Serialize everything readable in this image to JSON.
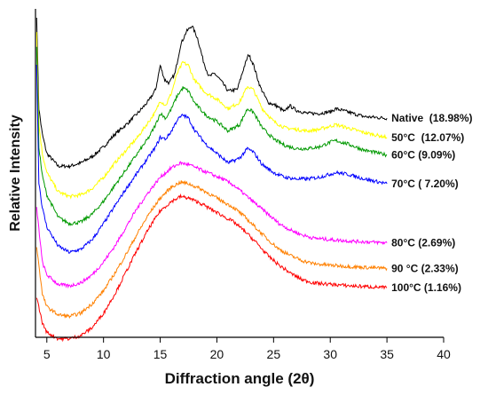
{
  "chart_data": {
    "type": "line",
    "title": "",
    "xlabel": "Diffraction angle (2θ)",
    "ylabel": "Relative Intensity",
    "xlim": [
      4,
      40
    ],
    "ylim": [
      0,
      100
    ],
    "xticks": [
      5,
      10,
      15,
      20,
      25,
      30,
      35,
      40
    ],
    "y_tick_labels_shown": false,
    "grid": false,
    "legend": "none (series labelled at right end of each curve)",
    "series": [
      {
        "name": "Native  (18.98%)",
        "color": "#000000",
        "points": [
          [
            4.1,
            100
          ],
          [
            4.3,
            71
          ],
          [
            4.6,
            63
          ],
          [
            5,
            57
          ],
          [
            6,
            53
          ],
          [
            7,
            53
          ],
          [
            8,
            54
          ],
          [
            9,
            56
          ],
          [
            10,
            59
          ],
          [
            11,
            63
          ],
          [
            12,
            66
          ],
          [
            13,
            69.5
          ],
          [
            14,
            73.5
          ],
          [
            14.6,
            77
          ],
          [
            15,
            84.5
          ],
          [
            15.4,
            80
          ],
          [
            15.8,
            79
          ],
          [
            16.3,
            82
          ],
          [
            16.8,
            91
          ],
          [
            17.3,
            95
          ],
          [
            17.8,
            97
          ],
          [
            18.3,
            93
          ],
          [
            18.8,
            86
          ],
          [
            19.3,
            81
          ],
          [
            19.8,
            82
          ],
          [
            20.3,
            80
          ],
          [
            21,
            76.5
          ],
          [
            21.8,
            77
          ],
          [
            22.4,
            84
          ],
          [
            22.8,
            88
          ],
          [
            23.2,
            85
          ],
          [
            23.8,
            78
          ],
          [
            24.5,
            73
          ],
          [
            25.2,
            72
          ],
          [
            26,
            70
          ],
          [
            26.4,
            72
          ],
          [
            27,
            70.5
          ],
          [
            28,
            69.5
          ],
          [
            29,
            69.5
          ],
          [
            30,
            70
          ],
          [
            30.5,
            71
          ],
          [
            31.5,
            70
          ],
          [
            33,
            68.5
          ],
          [
            35,
            68
          ]
        ]
      },
      {
        "name": "50°C  (12.07%)",
        "color": "#ffff00",
        "points": [
          [
            4.1,
            95
          ],
          [
            4.3,
            66
          ],
          [
            4.6,
            57
          ],
          [
            5,
            51
          ],
          [
            6,
            45
          ],
          [
            7,
            43.5
          ],
          [
            8,
            44
          ],
          [
            9,
            46
          ],
          [
            10,
            49.5
          ],
          [
            11,
            54
          ],
          [
            12,
            58
          ],
          [
            13,
            62
          ],
          [
            14,
            67
          ],
          [
            14.6,
            70
          ],
          [
            15,
            73.5
          ],
          [
            15.5,
            72
          ],
          [
            16,
            76
          ],
          [
            16.5,
            82
          ],
          [
            17,
            85.5
          ],
          [
            17.5,
            84.5
          ],
          [
            18,
            80
          ],
          [
            19,
            76
          ],
          [
            20,
            74
          ],
          [
            21,
            71
          ],
          [
            22,
            73
          ],
          [
            22.7,
            78
          ],
          [
            23.2,
            77
          ],
          [
            24,
            71
          ],
          [
            25,
            67
          ],
          [
            26,
            65
          ],
          [
            27,
            64.5
          ],
          [
            28,
            64
          ],
          [
            29,
            64.5
          ],
          [
            30,
            65.5
          ],
          [
            30.5,
            66
          ],
          [
            31.5,
            65
          ],
          [
            33,
            63.5
          ],
          [
            35,
            62
          ]
        ]
      },
      {
        "name": "60°C (9.09%)",
        "color": "#009900",
        "points": [
          [
            4.1,
            90
          ],
          [
            4.3,
            59
          ],
          [
            4.6,
            50
          ],
          [
            5,
            44
          ],
          [
            6,
            37
          ],
          [
            7,
            35
          ],
          [
            8,
            35.5
          ],
          [
            9,
            38
          ],
          [
            10,
            42
          ],
          [
            11,
            47
          ],
          [
            12,
            52
          ],
          [
            13,
            57
          ],
          [
            14,
            62
          ],
          [
            14.6,
            66
          ],
          [
            15,
            69.5
          ],
          [
            15.5,
            68
          ],
          [
            16,
            71
          ],
          [
            16.5,
            75
          ],
          [
            17,
            77.5
          ],
          [
            17.5,
            76.5
          ],
          [
            18,
            73
          ],
          [
            19,
            69
          ],
          [
            20,
            67
          ],
          [
            21,
            64
          ],
          [
            22,
            66
          ],
          [
            22.7,
            71
          ],
          [
            23.2,
            70
          ],
          [
            24,
            65
          ],
          [
            25,
            61.5
          ],
          [
            26,
            59.5
          ],
          [
            27,
            58.5
          ],
          [
            28,
            58.5
          ],
          [
            29,
            59
          ],
          [
            30,
            60.5
          ],
          [
            30.5,
            61
          ],
          [
            31.5,
            60
          ],
          [
            33,
            58
          ],
          [
            35,
            56.5
          ]
        ]
      },
      {
        "name": "70°C ( 7.20%)",
        "color": "#0000ff",
        "points": [
          [
            4.1,
            85
          ],
          [
            4.3,
            48
          ],
          [
            4.6,
            40
          ],
          [
            5,
            34
          ],
          [
            6,
            28
          ],
          [
            7,
            26
          ],
          [
            8,
            27
          ],
          [
            9,
            30
          ],
          [
            10,
            35
          ],
          [
            11,
            40.5
          ],
          [
            12,
            46
          ],
          [
            13,
            51
          ],
          [
            14,
            56
          ],
          [
            14.6,
            59
          ],
          [
            15,
            62
          ],
          [
            15.5,
            61.5
          ],
          [
            16,
            64
          ],
          [
            16.5,
            67.5
          ],
          [
            17,
            69
          ],
          [
            17.5,
            68
          ],
          [
            18,
            64.5
          ],
          [
            19,
            60
          ],
          [
            20,
            57
          ],
          [
            21,
            54
          ],
          [
            22,
            55.5
          ],
          [
            22.7,
            58.5
          ],
          [
            23.2,
            57.5
          ],
          [
            24,
            53.5
          ],
          [
            25,
            51
          ],
          [
            26,
            49.5
          ],
          [
            27,
            49
          ],
          [
            28,
            49
          ],
          [
            29,
            49.5
          ],
          [
            30,
            50.5
          ],
          [
            30.5,
            51
          ],
          [
            31.5,
            50.5
          ],
          [
            33,
            49
          ],
          [
            35,
            47.5
          ]
        ]
      },
      {
        "name": "80°C (2.69%)",
        "color": "#ff00ff",
        "points": [
          [
            4.1,
            40
          ],
          [
            4.6,
            23
          ],
          [
            5,
            19
          ],
          [
            6,
            16
          ],
          [
            7,
            15.5
          ],
          [
            8,
            16.5
          ],
          [
            9,
            19
          ],
          [
            10,
            23
          ],
          [
            11,
            28
          ],
          [
            12,
            34
          ],
          [
            13,
            40
          ],
          [
            14,
            45
          ],
          [
            15,
            49.5
          ],
          [
            16,
            52.5
          ],
          [
            16.8,
            54
          ],
          [
            17.5,
            53.5
          ],
          [
            18.5,
            52
          ],
          [
            19.5,
            50.5
          ],
          [
            20.5,
            49
          ],
          [
            21.5,
            47
          ],
          [
            22.5,
            44
          ],
          [
            23.5,
            41
          ],
          [
            24.5,
            38
          ],
          [
            25.5,
            35
          ],
          [
            26.5,
            33
          ],
          [
            27.5,
            31.5
          ],
          [
            28.5,
            30.5
          ],
          [
            30,
            30
          ],
          [
            32,
            29.5
          ],
          [
            35,
            29
          ]
        ]
      },
      {
        "name": "90 °C (2.33%)",
        "color": "#ff8000",
        "points": [
          [
            4.1,
            28
          ],
          [
            4.6,
            13
          ],
          [
            5,
            9
          ],
          [
            6,
            6.5
          ],
          [
            7,
            6
          ],
          [
            8,
            7
          ],
          [
            9,
            10
          ],
          [
            10,
            14
          ],
          [
            11,
            19.5
          ],
          [
            12,
            25.5
          ],
          [
            13,
            32
          ],
          [
            14,
            38
          ],
          [
            15,
            43
          ],
          [
            16,
            46.5
          ],
          [
            16.8,
            48
          ],
          [
            17.5,
            47.5
          ],
          [
            18.5,
            46
          ],
          [
            19.5,
            44
          ],
          [
            20.5,
            42
          ],
          [
            21.5,
            40
          ],
          [
            22.5,
            37
          ],
          [
            23.5,
            33.5
          ],
          [
            24.5,
            30
          ],
          [
            25.5,
            27
          ],
          [
            26.5,
            25
          ],
          [
            27.5,
            23.5
          ],
          [
            28.5,
            22.5
          ],
          [
            30,
            22
          ],
          [
            32,
            21.5
          ],
          [
            35,
            21
          ]
        ]
      },
      {
        "name": "100°C (1.16%)",
        "color": "#ff0000",
        "points": [
          [
            4.1,
            12
          ],
          [
            4.6,
            4
          ],
          [
            5,
            1
          ],
          [
            6,
            -1
          ],
          [
            7,
            -1
          ],
          [
            8,
            0
          ],
          [
            9,
            2.5
          ],
          [
            10,
            7
          ],
          [
            11,
            13
          ],
          [
            12,
            20
          ],
          [
            13,
            27
          ],
          [
            14,
            33.5
          ],
          [
            15,
            39
          ],
          [
            16,
            42
          ],
          [
            16.8,
            43.5
          ],
          [
            17.5,
            43
          ],
          [
            18.5,
            41.5
          ],
          [
            19.5,
            39.5
          ],
          [
            20.5,
            37.5
          ],
          [
            21.5,
            35.5
          ],
          [
            22.5,
            32.5
          ],
          [
            23.5,
            29
          ],
          [
            24.5,
            25
          ],
          [
            25.5,
            22
          ],
          [
            26.5,
            19.5
          ],
          [
            27.5,
            17.5
          ],
          [
            28.5,
            16.5
          ],
          [
            30,
            16
          ],
          [
            32,
            15.5
          ],
          [
            35,
            15
          ]
        ]
      }
    ]
  }
}
